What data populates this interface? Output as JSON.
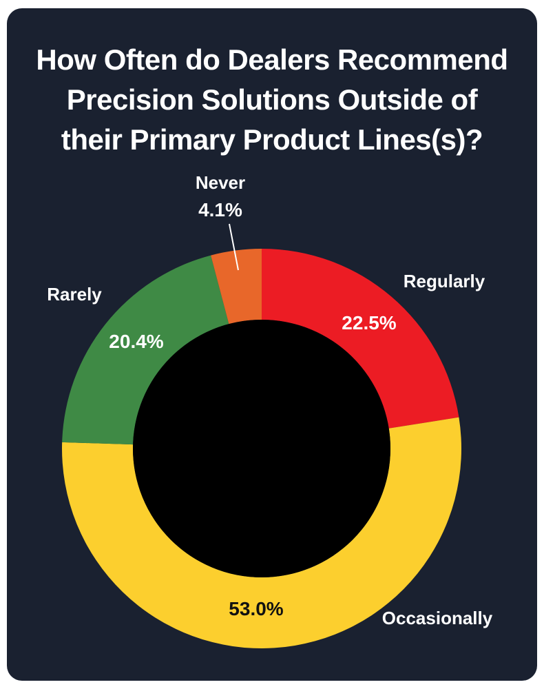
{
  "title_lines": [
    "How Often do Dealers Recommend",
    "Precision Solutions Outside of",
    "their Primary Product Lines(s)?"
  ],
  "chart_data": {
    "type": "pie",
    "subtype": "donut",
    "title": "How Often do Dealers Recommend Precision Solutions Outside of their Primary Product Lines(s)?",
    "slices": [
      {
        "label": "Regularly",
        "value": 22.5,
        "value_label": "22.5%",
        "color": "#ec1c24",
        "value_color": "#ffffff"
      },
      {
        "label": "Occasionally",
        "value": 53.0,
        "value_label": "53.0%",
        "color": "#fccf2e",
        "value_color": "#111111"
      },
      {
        "label": "Rarely",
        "value": 20.4,
        "value_label": "20.4%",
        "color": "#3f8a45",
        "value_color": "#ffffff"
      },
      {
        "label": "Never",
        "value": 4.1,
        "value_label": "4.1%",
        "color": "#e8672a",
        "value_color": "#ffffff"
      }
    ],
    "start": "top",
    "direction": "clockwise",
    "hole_color": "#000000",
    "background": "#1a2130"
  }
}
